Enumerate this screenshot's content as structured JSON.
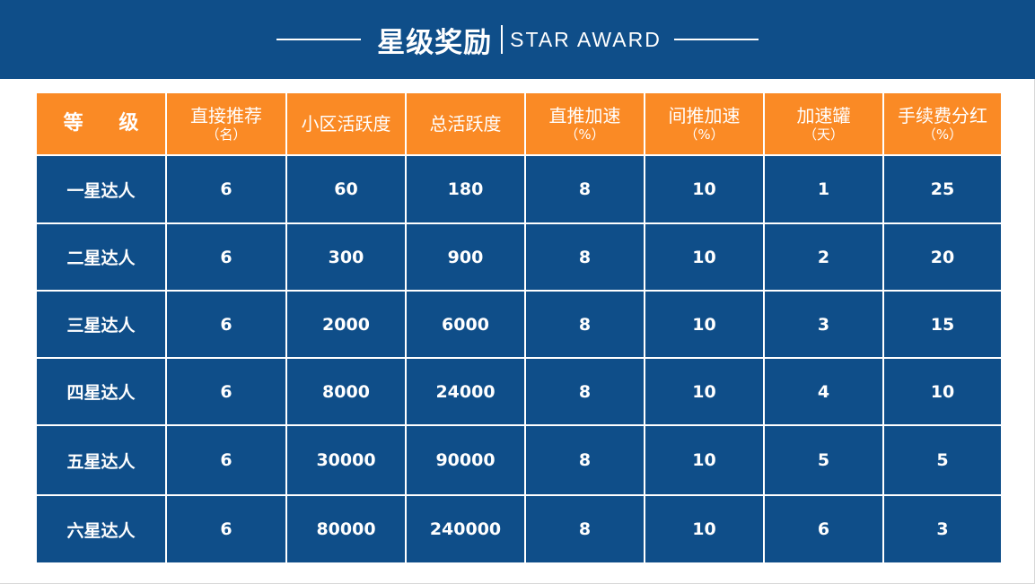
{
  "header": {
    "title_cn": "星级奖励",
    "title_en": "STAR AWARD"
  },
  "colors": {
    "header_bg": "#0f4e89",
    "table_header_bg": "#fa8a25",
    "cell_bg": "#0f4e89",
    "text": "#ffffff"
  },
  "table": {
    "columns": [
      {
        "label": "等 级",
        "sub": ""
      },
      {
        "label": "直接推荐",
        "sub": "（名）"
      },
      {
        "label": "小区活跃度",
        "sub": ""
      },
      {
        "label": "总活跃度",
        "sub": ""
      },
      {
        "label": "直推加速",
        "sub": "（%）"
      },
      {
        "label": "间推加速",
        "sub": "（%）"
      },
      {
        "label": "加速罐",
        "sub": "（天）"
      },
      {
        "label": "手续费分红",
        "sub": "（%）"
      }
    ],
    "rows": [
      [
        "一星达人",
        "6",
        "60",
        "180",
        "8",
        "10",
        "1",
        "25"
      ],
      [
        "二星达人",
        "6",
        "300",
        "900",
        "8",
        "10",
        "2",
        "20"
      ],
      [
        "三星达人",
        "6",
        "2000",
        "6000",
        "8",
        "10",
        "3",
        "15"
      ],
      [
        "四星达人",
        "6",
        "8000",
        "24000",
        "8",
        "10",
        "4",
        "10"
      ],
      [
        "五星达人",
        "6",
        "30000",
        "90000",
        "8",
        "10",
        "5",
        "5"
      ],
      [
        "六星达人",
        "6",
        "80000",
        "240000",
        "8",
        "10",
        "6",
        "3"
      ]
    ]
  }
}
